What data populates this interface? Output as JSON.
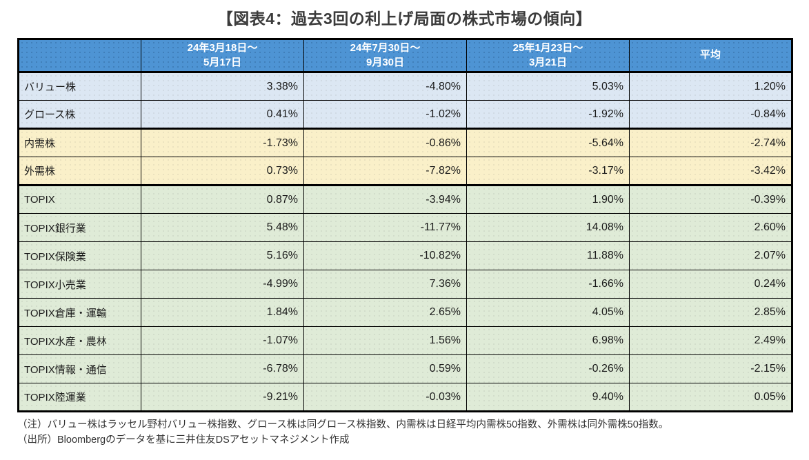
{
  "title": "【図表4：過去3回の利上げ局面の株式市場の傾向】",
  "colors": {
    "header_bg": "#4e94d4",
    "header_text": "#ffffff",
    "group_style_bg": "#dce7f3",
    "group_demand_bg": "#faf0c9",
    "group_topix_bg": "#dfebd7",
    "border": "#000000",
    "title_text": "#3b3b3b"
  },
  "chart_data": {
    "type": "table",
    "title": "【図表4：過去3回の利上げ局面の株式市場の傾向】",
    "columns": [
      {
        "label": ""
      },
      {
        "label": "24年3月18日～\n5月17日"
      },
      {
        "label": "24年7月30日～\n9月30日"
      },
      {
        "label": "25年1月23日～\n3月21日"
      },
      {
        "label": "平均"
      }
    ],
    "rows": [
      {
        "label": "バリュー株",
        "group": "style",
        "values": [
          "3.38%",
          "-4.80%",
          "5.03%",
          "1.20%"
        ]
      },
      {
        "label": "グロース株",
        "group": "style",
        "values": [
          "0.41%",
          "-1.02%",
          "-1.92%",
          "-0.84%"
        ]
      },
      {
        "label": "内需株",
        "group": "demand",
        "values": [
          "-1.73%",
          "-0.86%",
          "-5.64%",
          "-2.74%"
        ]
      },
      {
        "label": "外需株",
        "group": "demand",
        "values": [
          "0.73%",
          "-7.82%",
          "-3.17%",
          "-3.42%"
        ]
      },
      {
        "label": "TOPIX",
        "group": "topix",
        "values": [
          "0.87%",
          "-3.94%",
          "1.90%",
          "-0.39%"
        ]
      },
      {
        "label": "TOPIX銀行業",
        "group": "topix",
        "values": [
          "5.48%",
          "-11.77%",
          "14.08%",
          "2.60%"
        ]
      },
      {
        "label": "TOPIX保険業",
        "group": "topix",
        "values": [
          "5.16%",
          "-10.82%",
          "11.88%",
          "2.07%"
        ]
      },
      {
        "label": "TOPIX小売業",
        "group": "topix",
        "values": [
          "-4.99%",
          "7.36%",
          "-1.66%",
          "0.24%"
        ]
      },
      {
        "label": "TOPIX倉庫・運輸",
        "group": "topix",
        "values": [
          "1.84%",
          "2.65%",
          "4.05%",
          "2.85%"
        ]
      },
      {
        "label": "TOPIX水産・農林",
        "group": "topix",
        "values": [
          "-1.07%",
          "1.56%",
          "6.98%",
          "2.49%"
        ]
      },
      {
        "label": "TOPIX情報・通信",
        "group": "topix",
        "values": [
          "-6.78%",
          "0.59%",
          "-0.26%",
          "-2.15%"
        ]
      },
      {
        "label": "TOPIX陸運業",
        "group": "topix",
        "values": [
          "-9.21%",
          "-0.03%",
          "9.40%",
          "0.05%"
        ]
      }
    ]
  },
  "notes": {
    "note": "（注）バリュー株はラッセル野村バリュー株指数、グロース株は同グロース株指数、内需株は日経平均内需株50指数、外需株は同外需株50指数。",
    "source": "（出所）Bloombergのデータを基に三井住友DSアセットマネジメント作成"
  }
}
